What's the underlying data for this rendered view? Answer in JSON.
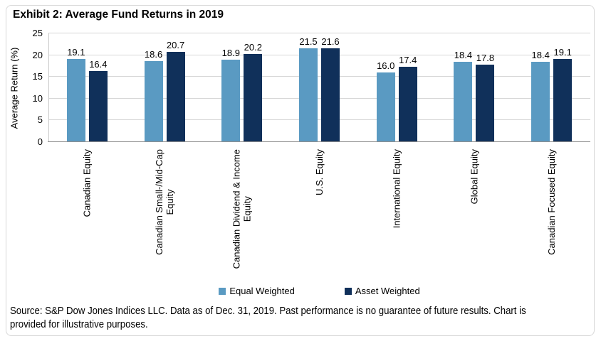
{
  "title": "Exhibit 2: Average Fund Returns in 2019",
  "chart_data": {
    "type": "bar",
    "title": "Exhibit 2: Average Fund Returns in 2019",
    "categories": [
      "Canadian Equity",
      "Canadian Small-/Mid-Cap\nEquity",
      "Canadian Dividend & Income\nEquity",
      "U.S. Equity",
      "International Equity",
      "Global Equity",
      "Canadian Focused Equity"
    ],
    "series": [
      {
        "name": "Equal Weighted",
        "color": "#5a9ac2",
        "values": [
          19.1,
          18.6,
          18.9,
          21.5,
          16.0,
          18.4,
          18.4
        ]
      },
      {
        "name": "Asset Weighted",
        "color": "#10305a",
        "values": [
          16.4,
          20.7,
          20.2,
          21.6,
          17.4,
          17.8,
          19.1
        ]
      }
    ],
    "xlabel": "",
    "ylabel": "Average Return (%)",
    "ylim": [
      0,
      25
    ],
    "yticks": [
      0,
      5,
      10,
      15,
      20,
      25
    ],
    "grid": "horizontal",
    "legend_position": "bottom",
    "value_labels": "one-decimal"
  },
  "source_note": "Source: S&P Dow Jones Indices LLC. Data as of Dec. 31, 2019. Past performance is no guarantee of future results. Chart is\nprovided for illustrative purposes.",
  "colors": {
    "equal_weighted": "#5a9ac2",
    "asset_weighted": "#10305a",
    "gridline": "#d6d6d6",
    "axis_line": "#8f8f8f",
    "card_border": "#d8d8d8",
    "text": "#000000"
  }
}
